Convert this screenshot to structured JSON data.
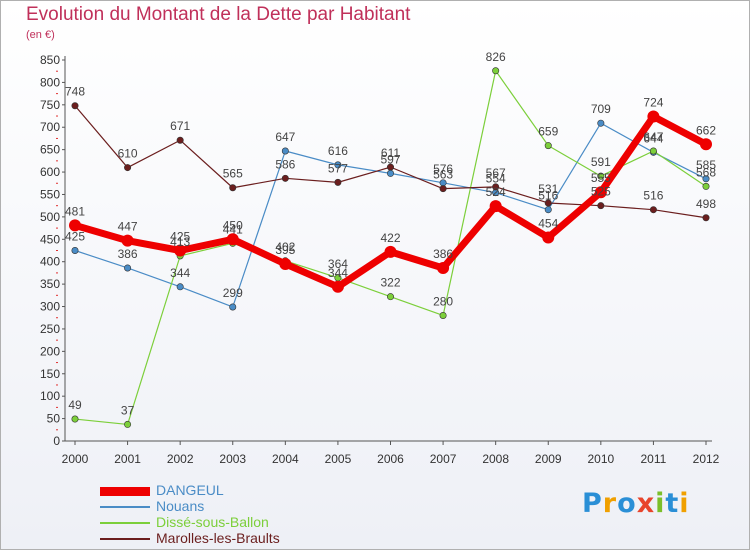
{
  "header": {
    "title": "Evolution du Montant de la Dette par Habitant",
    "unit": "(en €)"
  },
  "logo": {
    "text": "Proxiti",
    "letters": [
      {
        "char": "P",
        "color": "#2a8fd6"
      },
      {
        "char": "r",
        "color": "#f0a000"
      },
      {
        "char": "o",
        "color": "#2a8fd6"
      },
      {
        "char": "x",
        "color": "#e8452c"
      },
      {
        "char": "i",
        "color": "#7cbf2a"
      },
      {
        "char": "t",
        "color": "#2a8fd6"
      },
      {
        "char": "i",
        "color": "#f0a000"
      }
    ]
  },
  "chart_data": {
    "type": "line",
    "title": "Evolution du Montant de la Dette par Habitant",
    "ylabel": "(en €)",
    "xlabel": "",
    "x": [
      "2000",
      "2001",
      "2002",
      "2003",
      "2004",
      "2005",
      "2006",
      "2007",
      "2008",
      "2009",
      "2010",
      "2011",
      "2012"
    ],
    "ylim": [
      0,
      850
    ],
    "yticks": [
      0,
      50,
      100,
      150,
      200,
      250,
      300,
      350,
      400,
      450,
      500,
      550,
      600,
      650,
      700,
      750,
      800,
      850
    ],
    "grid": false,
    "legend": "bottom-left",
    "series": [
      {
        "name": "DANGEUL",
        "color": "#ee0000",
        "values": [
          481,
          447,
          425,
          450,
          395,
          344,
          422,
          386,
          524,
          454,
          555,
          724,
          662
        ]
      },
      {
        "name": "Nouans",
        "color": "#4a8cc6",
        "values": [
          425,
          386,
          344,
          299,
          647,
          616,
          597,
          576,
          554,
          516,
          709,
          644,
          585
        ]
      },
      {
        "name": "Dissé-sous-Ballon",
        "color": "#7ccf3a",
        "values": [
          49,
          37,
          413,
          441,
          402,
          364,
          322,
          280,
          826,
          659,
          591,
          647,
          568
        ]
      },
      {
        "name": "Marolles-les-Braults",
        "color": "#6b1e1e",
        "values": [
          748,
          610,
          671,
          565,
          586,
          577,
          611,
          563,
          567,
          531,
          525,
          516,
          498
        ]
      }
    ]
  }
}
